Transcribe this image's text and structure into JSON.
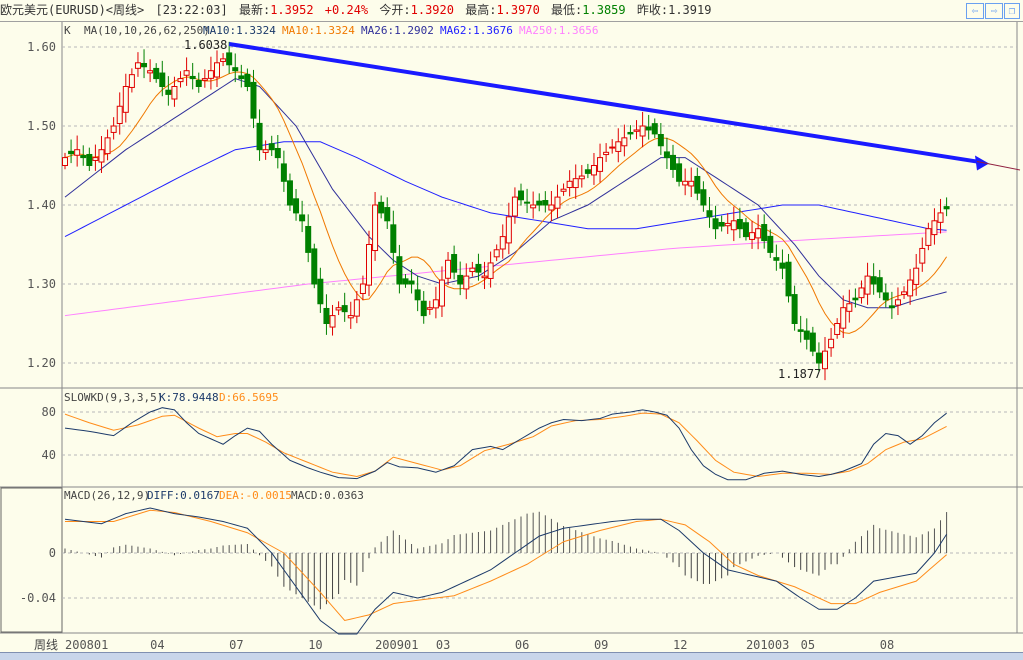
{
  "header": {
    "symbol": "欧元美元(EURUSD)<周线>",
    "time": "[23:22:03]",
    "latest_label": "最新:",
    "latest": "1.3952",
    "change": "+0.24%",
    "open_label": "今开:",
    "open": "1.3920",
    "high_label": "最高:",
    "high": "1.3970",
    "low_label": "最低:",
    "low": "1.3859",
    "prev_label": "昨收:",
    "prev": "1.3919"
  },
  "nav": {
    "prev_icon": "arrow-left-icon",
    "next_icon": "arrow-right-icon",
    "restore_icon": "restore-window-icon"
  },
  "ma_legend": {
    "k": "K",
    "params": "MA(10,10,26,62,250)",
    "ma10a": "MA10:1.3324",
    "ma10b": "MA10:1.3324",
    "ma26": "MA26:1.2902",
    "ma62": "MA62:1.3676",
    "ma250": "MA250:1.3656"
  },
  "kd_legend": {
    "params": "SLOWKD(9,3,3,5)",
    "k": "K:78.9448",
    "d": "D:66.5695"
  },
  "macd_legend": {
    "params": "MACD(26,12,9)",
    "diff": "DIFF:0.0167",
    "dea": "DEA:-0.0015",
    "macd": "MACD:0.0363"
  },
  "annotations": {
    "high": "1.6038",
    "low": "1.1877"
  },
  "period_label": "周线",
  "colors": {
    "up": "#e00000",
    "down": "#008000",
    "ma10": "#f07800",
    "ma26": "#30309a",
    "ma62": "#2020ff",
    "ma250": "#ff80ff",
    "trend": "#1a1aff",
    "k": "#1c3a6a",
    "d": "#ff8c1a"
  },
  "chart_data": [
    {
      "type": "candlestick",
      "title": "EURUSD weekly",
      "y_ticks": [
        1.6,
        1.5,
        1.4,
        1.3,
        1.2
      ],
      "y_tick_labels": [
        "1.60",
        "1.50",
        "1.40",
        "1.30",
        "1.20"
      ],
      "ylim": [
        1.1695,
        1.6317
      ],
      "x_tick_labels": [
        {
          "week": 0,
          "label": "200801"
        },
        {
          "week": 14,
          "label": "04"
        },
        {
          "week": 27,
          "label": "07"
        },
        {
          "week": 40,
          "label": "10"
        },
        {
          "week": 51,
          "label": "200901"
        },
        {
          "week": 61,
          "label": "03"
        },
        {
          "week": 74,
          "label": "06"
        },
        {
          "week": 87,
          "label": "09"
        },
        {
          "week": 100,
          "label": "12"
        },
        {
          "week": 112,
          "label": "201003"
        },
        {
          "week": 121,
          "label": "05"
        },
        {
          "week": 134,
          "label": "08"
        }
      ],
      "weeks": 146,
      "close_keypoints": [
        [
          0,
          1.46
        ],
        [
          2,
          1.47
        ],
        [
          4,
          1.45
        ],
        [
          6,
          1.47
        ],
        [
          8,
          1.5
        ],
        [
          10,
          1.55
        ],
        [
          12,
          1.58
        ],
        [
          14,
          1.57
        ],
        [
          15,
          1.56
        ],
        [
          17,
          1.54
        ],
        [
          18,
          1.55
        ],
        [
          20,
          1.57
        ],
        [
          22,
          1.55
        ],
        [
          23,
          1.56
        ],
        [
          25,
          1.58
        ],
        [
          26,
          1.585
        ],
        [
          28,
          1.57
        ],
        [
          30,
          1.55
        ],
        [
          32,
          1.47
        ],
        [
          34,
          1.47
        ],
        [
          35,
          1.46
        ],
        [
          37,
          1.4
        ],
        [
          39,
          1.38
        ],
        [
          41,
          1.3
        ],
        [
          43,
          1.25
        ],
        [
          45,
          1.27
        ],
        [
          47,
          1.26
        ],
        [
          49,
          1.3
        ],
        [
          51,
          1.4
        ],
        [
          53,
          1.38
        ],
        [
          55,
          1.3
        ],
        [
          57,
          1.3
        ],
        [
          59,
          1.26
        ],
        [
          61,
          1.28
        ],
        [
          63,
          1.33
        ],
        [
          65,
          1.3
        ],
        [
          67,
          1.32
        ],
        [
          69,
          1.31
        ],
        [
          72,
          1.36
        ],
        [
          74,
          1.41
        ],
        [
          77,
          1.4
        ],
        [
          80,
          1.4
        ],
        [
          83,
          1.43
        ],
        [
          86,
          1.44
        ],
        [
          88,
          1.46
        ],
        [
          91,
          1.48
        ],
        [
          93,
          1.49
        ],
        [
          95,
          1.5
        ],
        [
          97,
          1.49
        ],
        [
          99,
          1.46
        ],
        [
          101,
          1.43
        ],
        [
          103,
          1.43
        ],
        [
          105,
          1.4
        ],
        [
          107,
          1.37
        ],
        [
          110,
          1.38
        ],
        [
          112,
          1.36
        ],
        [
          114,
          1.37
        ],
        [
          116,
          1.34
        ],
        [
          118,
          1.32
        ],
        [
          120,
          1.25
        ],
        [
          122,
          1.23
        ],
        [
          124,
          1.2
        ],
        [
          126,
          1.23
        ],
        [
          128,
          1.27
        ],
        [
          130,
          1.28
        ],
        [
          132,
          1.31
        ],
        [
          134,
          1.29
        ],
        [
          136,
          1.27
        ],
        [
          138,
          1.29
        ],
        [
          140,
          1.32
        ],
        [
          142,
          1.37
        ],
        [
          144,
          1.39
        ],
        [
          145,
          1.3952
        ]
      ],
      "ma26_keypoints": [
        [
          0,
          1.41
        ],
        [
          10,
          1.47
        ],
        [
          20,
          1.52
        ],
        [
          28,
          1.56
        ],
        [
          32,
          1.55
        ],
        [
          38,
          1.5
        ],
        [
          44,
          1.42
        ],
        [
          50,
          1.36
        ],
        [
          54,
          1.33
        ],
        [
          58,
          1.31
        ],
        [
          62,
          1.3
        ],
        [
          68,
          1.31
        ],
        [
          74,
          1.34
        ],
        [
          80,
          1.38
        ],
        [
          86,
          1.4
        ],
        [
          92,
          1.43
        ],
        [
          98,
          1.46
        ],
        [
          102,
          1.46
        ],
        [
          108,
          1.43
        ],
        [
          114,
          1.4
        ],
        [
          120,
          1.35
        ],
        [
          124,
          1.31
        ],
        [
          128,
          1.28
        ],
        [
          132,
          1.27
        ],
        [
          136,
          1.27
        ],
        [
          140,
          1.28
        ],
        [
          145,
          1.29
        ]
      ],
      "ma62_keypoints": [
        [
          0,
          1.36
        ],
        [
          10,
          1.4
        ],
        [
          20,
          1.44
        ],
        [
          28,
          1.47
        ],
        [
          36,
          1.48
        ],
        [
          42,
          1.48
        ],
        [
          48,
          1.46
        ],
        [
          56,
          1.43
        ],
        [
          62,
          1.41
        ],
        [
          70,
          1.39
        ],
        [
          78,
          1.38
        ],
        [
          86,
          1.37
        ],
        [
          94,
          1.37
        ],
        [
          102,
          1.38
        ],
        [
          110,
          1.39
        ],
        [
          118,
          1.4
        ],
        [
          124,
          1.4
        ],
        [
          130,
          1.39
        ],
        [
          136,
          1.38
        ],
        [
          142,
          1.37
        ],
        [
          145,
          1.368
        ]
      ],
      "ma250_keypoints": [
        [
          0,
          1.26
        ],
        [
          20,
          1.28
        ],
        [
          40,
          1.3
        ],
        [
          60,
          1.315
        ],
        [
          80,
          1.33
        ],
        [
          100,
          1.345
        ],
        [
          120,
          1.355
        ],
        [
          145,
          1.366
        ]
      ],
      "trendline": [
        [
          27,
          1.6038
        ],
        [
          150,
          1.455
        ]
      ]
    },
    {
      "type": "line",
      "title": "SLOWKD(9,3,3,5)",
      "y_ticks": [
        80,
        40
      ],
      "y_tick_labels": [
        "80",
        "40"
      ],
      "ylim": [
        17.7,
        102.3
      ],
      "k_keypoints": [
        [
          0,
          65
        ],
        [
          4,
          62
        ],
        [
          8,
          58
        ],
        [
          11,
          70
        ],
        [
          14,
          80
        ],
        [
          16,
          84
        ],
        [
          18,
          82
        ],
        [
          20,
          70
        ],
        [
          22,
          60
        ],
        [
          24,
          55
        ],
        [
          26,
          50
        ],
        [
          28,
          58
        ],
        [
          30,
          65
        ],
        [
          32,
          62
        ],
        [
          34,
          50
        ],
        [
          37,
          35
        ],
        [
          40,
          28
        ],
        [
          42,
          24
        ],
        [
          45,
          19
        ],
        [
          48,
          18
        ],
        [
          51,
          25
        ],
        [
          53,
          33
        ],
        [
          55,
          29
        ],
        [
          58,
          28
        ],
        [
          61,
          24
        ],
        [
          64,
          30
        ],
        [
          67,
          45
        ],
        [
          70,
          48
        ],
        [
          72,
          45
        ],
        [
          75,
          55
        ],
        [
          78,
          65
        ],
        [
          80,
          70
        ],
        [
          82,
          73
        ],
        [
          85,
          72
        ],
        [
          88,
          74
        ],
        [
          90,
          78
        ],
        [
          93,
          80
        ],
        [
          95,
          82
        ],
        [
          97,
          80
        ],
        [
          99,
          77
        ],
        [
          101,
          65
        ],
        [
          103,
          45
        ],
        [
          105,
          30
        ],
        [
          107,
          22
        ],
        [
          109,
          17
        ],
        [
          112,
          17
        ],
        [
          115,
          23
        ],
        [
          118,
          25
        ],
        [
          121,
          22
        ],
        [
          124,
          20
        ],
        [
          126,
          22
        ],
        [
          128,
          25
        ],
        [
          131,
          32
        ],
        [
          133,
          50
        ],
        [
          135,
          60
        ],
        [
          137,
          58
        ],
        [
          139,
          50
        ],
        [
          141,
          58
        ],
        [
          143,
          70
        ],
        [
          145,
          78.9
        ]
      ],
      "d_keypoints": [
        [
          0,
          78
        ],
        [
          4,
          70
        ],
        [
          8,
          63
        ],
        [
          12,
          68
        ],
        [
          16,
          76
        ],
        [
          18,
          77
        ],
        [
          22,
          65
        ],
        [
          25,
          57
        ],
        [
          28,
          60
        ],
        [
          30,
          60
        ],
        [
          33,
          52
        ],
        [
          36,
          42
        ],
        [
          40,
          33
        ],
        [
          44,
          24
        ],
        [
          48,
          20
        ],
        [
          51,
          25
        ],
        [
          54,
          38
        ],
        [
          58,
          32
        ],
        [
          62,
          26
        ],
        [
          65,
          30
        ],
        [
          69,
          44
        ],
        [
          73,
          50
        ],
        [
          77,
          57
        ],
        [
          80,
          67
        ],
        [
          84,
          72
        ],
        [
          88,
          73
        ],
        [
          92,
          76
        ],
        [
          95,
          79
        ],
        [
          98,
          78
        ],
        [
          101,
          70
        ],
        [
          104,
          53
        ],
        [
          107,
          35
        ],
        [
          110,
          24
        ],
        [
          114,
          20
        ],
        [
          118,
          23
        ],
        [
          122,
          23
        ],
        [
          126,
          22
        ],
        [
          129,
          25
        ],
        [
          132,
          32
        ],
        [
          135,
          45
        ],
        [
          138,
          52
        ],
        [
          141,
          55
        ],
        [
          145,
          66.6
        ]
      ]
    },
    {
      "type": "line+bar",
      "title": "MACD(26,12,9)",
      "y_ticks": [
        0,
        -0.04
      ],
      "y_tick_labels": [
        "0",
        "-0.04"
      ],
      "ylim": [
        -0.0711,
        0.0587
      ],
      "diff_keypoints": [
        [
          0,
          0.03
        ],
        [
          6,
          0.026
        ],
        [
          10,
          0.035
        ],
        [
          14,
          0.04
        ],
        [
          18,
          0.035
        ],
        [
          22,
          0.032
        ],
        [
          26,
          0.028
        ],
        [
          30,
          0.022
        ],
        [
          34,
          0.0
        ],
        [
          38,
          -0.03
        ],
        [
          42,
          -0.06
        ],
        [
          45,
          -0.072
        ],
        [
          48,
          -0.072
        ],
        [
          51,
          -0.05
        ],
        [
          54,
          -0.035
        ],
        [
          58,
          -0.04
        ],
        [
          62,
          -0.035
        ],
        [
          66,
          -0.025
        ],
        [
          70,
          -0.015
        ],
        [
          74,
          0.0
        ],
        [
          78,
          0.015
        ],
        [
          82,
          0.022
        ],
        [
          86,
          0.025
        ],
        [
          90,
          0.028
        ],
        [
          94,
          0.03
        ],
        [
          98,
          0.03
        ],
        [
          101,
          0.02
        ],
        [
          105,
          0.0
        ],
        [
          109,
          -0.015
        ],
        [
          113,
          -0.02
        ],
        [
          117,
          -0.025
        ],
        [
          121,
          -0.04
        ],
        [
          124,
          -0.05
        ],
        [
          127,
          -0.05
        ],
        [
          130,
          -0.04
        ],
        [
          133,
          -0.025
        ],
        [
          136,
          -0.022
        ],
        [
          140,
          -0.018
        ],
        [
          143,
          0.0
        ],
        [
          145,
          0.0167
        ]
      ],
      "dea_keypoints": [
        [
          0,
          0.028
        ],
        [
          8,
          0.028
        ],
        [
          14,
          0.038
        ],
        [
          18,
          0.036
        ],
        [
          24,
          0.028
        ],
        [
          30,
          0.018
        ],
        [
          36,
          0.0
        ],
        [
          42,
          -0.035
        ],
        [
          46,
          -0.06
        ],
        [
          50,
          -0.055
        ],
        [
          54,
          -0.045
        ],
        [
          58,
          -0.042
        ],
        [
          64,
          -0.038
        ],
        [
          70,
          -0.025
        ],
        [
          76,
          -0.01
        ],
        [
          82,
          0.01
        ],
        [
          88,
          0.02
        ],
        [
          94,
          0.028
        ],
        [
          98,
          0.03
        ],
        [
          102,
          0.025
        ],
        [
          106,
          0.01
        ],
        [
          110,
          -0.01
        ],
        [
          114,
          -0.02
        ],
        [
          120,
          -0.03
        ],
        [
          126,
          -0.045
        ],
        [
          130,
          -0.045
        ],
        [
          134,
          -0.035
        ],
        [
          140,
          -0.025
        ],
        [
          145,
          -0.0015
        ]
      ],
      "histogram": "2*(DIFF-DEA)"
    }
  ]
}
